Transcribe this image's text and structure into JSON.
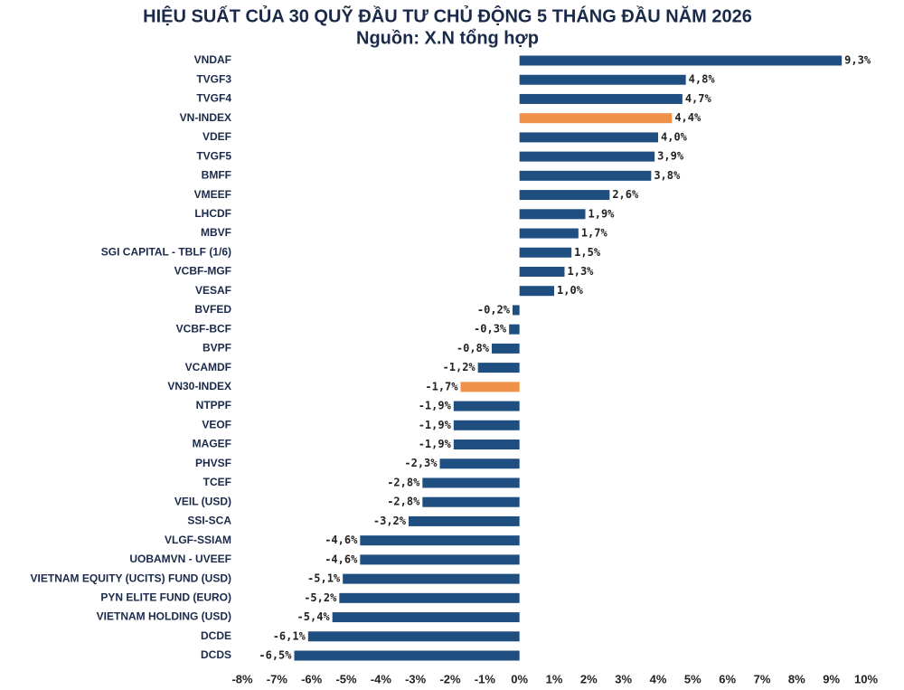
{
  "chart_data": {
    "type": "barh",
    "title": "HIỆU SUẤT CỦA 30 QUỸ ĐẦU TƯ CHỦ ĐỘNG 5 THÁNG ĐẦU NĂM 2026",
    "subtitle": "Nguồn: X.N tổng hợp",
    "categories": [
      "VNDAF",
      "TVGF3",
      "TVGF4",
      "VN-INDEX",
      "VDEF",
      "TVGF5",
      "BMFF",
      "VMEEF",
      "LHCDF",
      "MBVF",
      "SGI CAPITAL - TBLF (1/6)",
      "VCBF-MGF",
      "VESAF",
      "BVFED",
      "VCBF-BCF",
      "BVPF",
      "VCAMDF",
      "VN30-INDEX",
      "NTPPF",
      "VEOF",
      "MAGEF",
      "PHVSF",
      "TCEF",
      "VEIL (USD)",
      "SSI-SCA",
      "VLGF-SSIAM",
      "UOBAMVN - UVEEF",
      "VIETNAM EQUITY (UCITS) FUND (USD)",
      "PYN ELITE FUND (EURO)",
      "VIETNAM HOLDING (USD)",
      "DCDE",
      "DCDS"
    ],
    "values": [
      9.3,
      4.8,
      4.7,
      4.4,
      4.0,
      3.9,
      3.8,
      2.6,
      1.9,
      1.7,
      1.5,
      1.3,
      1.0,
      -0.2,
      -0.3,
      -0.8,
      -1.2,
      -1.7,
      -1.9,
      -1.9,
      -1.9,
      -2.3,
      -2.8,
      -2.8,
      -3.2,
      -4.6,
      -4.6,
      -5.1,
      -5.2,
      -5.4,
      -6.1,
      -6.5
    ],
    "value_labels": [
      "9,3%",
      "4,8%",
      "4,7%",
      "4,4%",
      "4,0%",
      "3,9%",
      "3,8%",
      "2,6%",
      "1,9%",
      "1,7%",
      "1,5%",
      "1,3%",
      "1,0%",
      "-0,2%",
      "-0,3%",
      "-0,8%",
      "-1,2%",
      "-1,7%",
      "-1,9%",
      "-1,9%",
      "-1,9%",
      "-2,3%",
      "-2,8%",
      "-2,8%",
      "-3,2%",
      "-4,6%",
      "-4,6%",
      "-5,1%",
      "-5,2%",
      "-5,4%",
      "-6,1%",
      "-6,5%"
    ],
    "colors": [
      "#1f4e80",
      "#1f4e80",
      "#1f4e80",
      "#f0914a",
      "#1f4e80",
      "#1f4e80",
      "#1f4e80",
      "#1f4e80",
      "#1f4e80",
      "#1f4e80",
      "#1f4e80",
      "#1f4e80",
      "#1f4e80",
      "#1f4e80",
      "#1f4e80",
      "#1f4e80",
      "#1f4e80",
      "#f0914a",
      "#1f4e80",
      "#1f4e80",
      "#1f4e80",
      "#1f4e80",
      "#1f4e80",
      "#1f4e80",
      "#1f4e80",
      "#1f4e80",
      "#1f4e80",
      "#1f4e80",
      "#1f4e80",
      "#1f4e80",
      "#1f4e80",
      "#1f4e80"
    ],
    "xlim": [
      -8,
      10
    ],
    "xticks": [
      {
        "value": -8,
        "label": "-8%"
      },
      {
        "value": -7,
        "label": "-7%"
      },
      {
        "value": -6,
        "label": "-6%"
      },
      {
        "value": -5,
        "label": "-5%"
      },
      {
        "value": -4,
        "label": "-4%"
      },
      {
        "value": -3,
        "label": "-3%"
      },
      {
        "value": -2,
        "label": "-2%"
      },
      {
        "value": -1,
        "label": "-1%"
      },
      {
        "value": 0,
        "label": "0%"
      },
      {
        "value": 1,
        "label": "1%"
      },
      {
        "value": 2,
        "label": "2%"
      },
      {
        "value": 3,
        "label": "3%"
      },
      {
        "value": 4,
        "label": "4%"
      },
      {
        "value": 5,
        "label": "5%"
      },
      {
        "value": 6,
        "label": "6%"
      },
      {
        "value": 7,
        "label": "7%"
      },
      {
        "value": 8,
        "label": "8%"
      },
      {
        "value": 9,
        "label": "9%"
      },
      {
        "value": 10,
        "label": "10%"
      }
    ],
    "grid": false
  }
}
